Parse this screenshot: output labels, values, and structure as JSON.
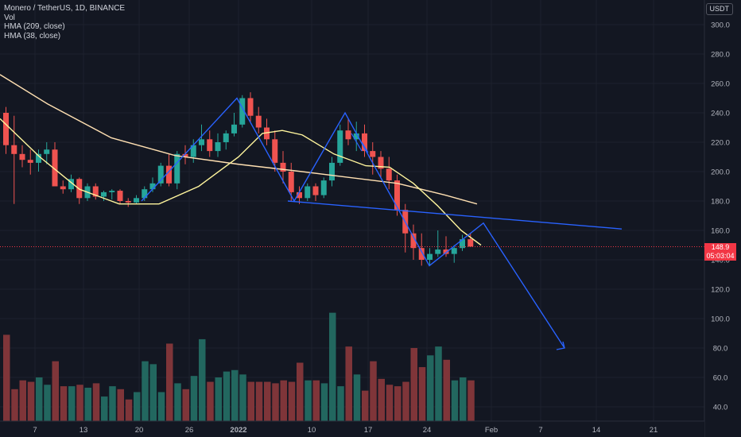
{
  "legend": {
    "symbol": "Monero / TetherUS, 1D, BINANCE",
    "vol": "Vol",
    "hma1": "HMA (209, close)",
    "hma2": "HMA (38, close)"
  },
  "currency_badge": "USDT",
  "last_price": "148.9",
  "countdown": "05:03:04",
  "colors": {
    "background": "#131722",
    "up": "#26a69a",
    "down": "#ef5350",
    "vol_up": "#22675f",
    "vol_down": "#7f3539",
    "hma_long": "#ffe0b2",
    "hma_short": "#fff59d",
    "drawing": "#2962ff",
    "price_line": "#f23645",
    "axis_text": "#b2b5be"
  },
  "chart_data": {
    "type": "candlestick",
    "y_ticks": [
      "300.0",
      "280.0",
      "260.0",
      "240.0",
      "220.0",
      "200.0",
      "180.0",
      "160.0",
      "140.0",
      "120.0",
      "100.0",
      "80.0",
      "60.0",
      "40.0"
    ],
    "x_ticks": [
      "7",
      "13",
      "20",
      "26",
      "2022",
      "10",
      "17",
      "24",
      "Feb",
      "7",
      "14",
      "21"
    ],
    "ohlc": [
      [
        240,
        244,
        212,
        218
      ],
      [
        218,
        238,
        178,
        212
      ],
      [
        212,
        218,
        203,
        208
      ],
      [
        208,
        215,
        198,
        206
      ],
      [
        206,
        215,
        200,
        212
      ],
      [
        212,
        220,
        205,
        215
      ],
      [
        215,
        220,
        190,
        190
      ],
      [
        190,
        194,
        185,
        188
      ],
      [
        188,
        198,
        186,
        195
      ],
      [
        195,
        196,
        178,
        182
      ],
      [
        182,
        192,
        180,
        190
      ],
      [
        190,
        192,
        181,
        183
      ],
      [
        183,
        187,
        180,
        186
      ],
      [
        186,
        188,
        181,
        187
      ],
      [
        187,
        188,
        178,
        180
      ],
      [
        180,
        182,
        176,
        179
      ],
      [
        179,
        184,
        178,
        182
      ],
      [
        182,
        190,
        180,
        188
      ],
      [
        188,
        196,
        186,
        192
      ],
      [
        192,
        206,
        190,
        204
      ],
      [
        204,
        212,
        190,
        192
      ],
      [
        192,
        214,
        188,
        212
      ],
      [
        212,
        218,
        205,
        210
      ],
      [
        210,
        222,
        206,
        218
      ],
      [
        218,
        232,
        214,
        222
      ],
      [
        222,
        228,
        210,
        214
      ],
      [
        214,
        226,
        210,
        220
      ],
      [
        220,
        228,
        215,
        226
      ],
      [
        226,
        240,
        224,
        232
      ],
      [
        232,
        252,
        230,
        250
      ],
      [
        250,
        254,
        234,
        238
      ],
      [
        238,
        244,
        226,
        230
      ],
      [
        230,
        236,
        218,
        222
      ],
      [
        222,
        228,
        200,
        206
      ],
      [
        206,
        214,
        192,
        200
      ],
      [
        200,
        206,
        180,
        186
      ],
      [
        186,
        190,
        178,
        182
      ],
      [
        182,
        192,
        180,
        190
      ],
      [
        190,
        192,
        180,
        184
      ],
      [
        184,
        196,
        182,
        194
      ],
      [
        194,
        210,
        190,
        206
      ],
      [
        206,
        232,
        204,
        228
      ],
      [
        228,
        236,
        218,
        222
      ],
      [
        222,
        234,
        214,
        226
      ],
      [
        226,
        232,
        210,
        214
      ],
      [
        214,
        220,
        198,
        210
      ],
      [
        210,
        214,
        196,
        202
      ],
      [
        202,
        210,
        188,
        194
      ],
      [
        194,
        198,
        170,
        174
      ],
      [
        174,
        178,
        145,
        158
      ],
      [
        158,
        164,
        140,
        148
      ],
      [
        148,
        158,
        136,
        140
      ],
      [
        140,
        148,
        136,
        144
      ],
      [
        144,
        160,
        142,
        147
      ],
      [
        147,
        156,
        142,
        144
      ],
      [
        144,
        150,
        138,
        148
      ],
      [
        148,
        157,
        146,
        154
      ],
      [
        154,
        158,
        149,
        149
      ]
    ],
    "volume": [
      89,
      52,
      58,
      57,
      60,
      55,
      71,
      54,
      54,
      55,
      53,
      56,
      47,
      54,
      52,
      45,
      50,
      71,
      69,
      50,
      83,
      56,
      52,
      61,
      86,
      57,
      60,
      64,
      65,
      62,
      57,
      57,
      57,
      56,
      58,
      57,
      70,
      58,
      58,
      56,
      104,
      54,
      81,
      62,
      51,
      71,
      59,
      55,
      54,
      57,
      80,
      67,
      75,
      81,
      72,
      58,
      60,
      58
    ],
    "hma_209": [
      [
        0,
        266
      ],
      [
        60,
        246
      ],
      [
        140,
        223
      ],
      [
        220,
        211
      ],
      [
        300,
        205
      ],
      [
        380,
        200
      ],
      [
        440,
        196
      ],
      [
        500,
        192
      ],
      [
        560,
        184
      ],
      [
        600,
        178
      ]
    ],
    "hma_38": [
      [
        0,
        236
      ],
      [
        50,
        210
      ],
      [
        100,
        188
      ],
      [
        150,
        178
      ],
      [
        200,
        178
      ],
      [
        250,
        190
      ],
      [
        300,
        210
      ],
      [
        330,
        226
      ],
      [
        355,
        228
      ],
      [
        380,
        225
      ],
      [
        420,
        212
      ],
      [
        460,
        204
      ],
      [
        490,
        203
      ],
      [
        520,
        192
      ],
      [
        550,
        177
      ],
      [
        580,
        160
      ],
      [
        605,
        150
      ]
    ],
    "ylim": [
      30,
      310
    ],
    "last_price": 148.9
  }
}
